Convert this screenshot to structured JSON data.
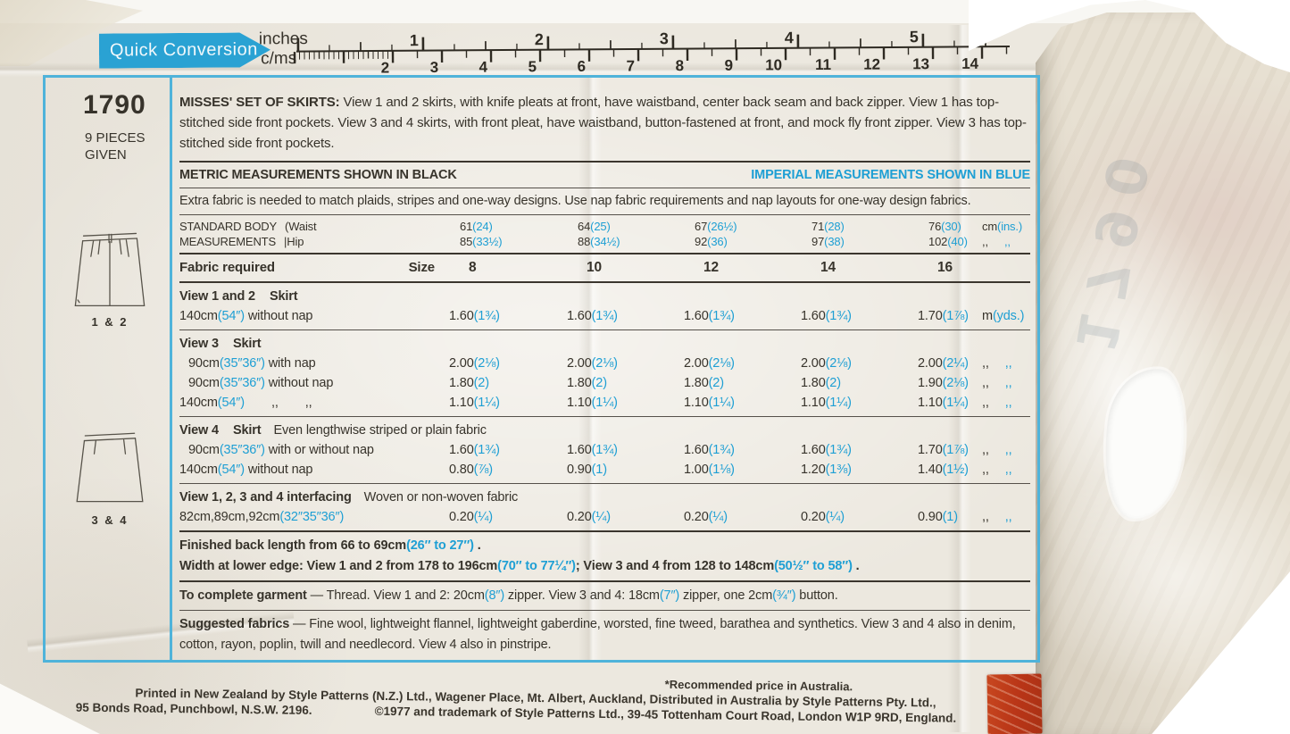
{
  "colors": {
    "blue_text": "#1e9fd4",
    "ink": "#37332b",
    "border_blue": "#4fb3da",
    "banner_blue": "#2aa2d3",
    "stamp_red": "#b93517"
  },
  "ruler": {
    "banner": "Quick Conversion",
    "top_label": "inches",
    "bottom_label": "c/ms",
    "inch_numbers": [
      1,
      2,
      3,
      4,
      5
    ],
    "cm_numbers": [
      2,
      3,
      4,
      5,
      6,
      7,
      8,
      9,
      10,
      11,
      12,
      13,
      14
    ]
  },
  "header": {
    "number": "1790",
    "pieces_line1": "9 PIECES",
    "pieces_line2": "GIVEN"
  },
  "sketches": {
    "one_two": "1 & 2",
    "three_four": "3 & 4"
  },
  "description": [
    [
      "MISSES' SET OF SKIRTS:",
      "kb"
    ],
    [
      " View 1 and 2 skirts, with knife pleats at front, have waistband, center back seam and back zipper. View 1 has top-stitched side front pockets. View 3 and 4 skirts, with front pleat, have waistband, button-fastened at front, and mock fly front zipper. View 3 has top-stitched side front pockets.",
      "k"
    ]
  ],
  "notes": {
    "metric": "METRIC MEASUREMENTS SHOWN IN BLACK",
    "imperial": "IMPERIAL MEASUREMENTS SHOWN IN BLUE",
    "extra_fabric": "Extra fabric is needed to match plaids, stripes and one-way designs. Use nap fabric requirements and nap layouts for one-way design fabrics."
  },
  "body_measurements": {
    "label_line1": [
      [
        "STANDARD BODY",
        "k"
      ],
      [
        "(Waist",
        "kg"
      ]
    ],
    "label_line2": [
      [
        "MEASUREMENTS",
        "k"
      ],
      [
        "|Hip",
        "kg"
      ]
    ],
    "waist": [
      [
        "61",
        "24"
      ],
      [
        "64",
        "25"
      ],
      [
        "67",
        "26½"
      ],
      [
        "71",
        "28"
      ],
      [
        "76",
        "30"
      ]
    ],
    "hip": [
      [
        "85",
        "33½"
      ],
      [
        "88",
        "34½"
      ],
      [
        "92",
        "36"
      ],
      [
        "97",
        "38"
      ],
      [
        "102",
        "40"
      ]
    ],
    "unit_line1": [
      [
        "cm",
        "k"
      ],
      [
        "(ins.)",
        "b"
      ]
    ],
    "unit_line2": [
      [
        ",,",
        "k"
      ],
      [
        ",,",
        "bg"
      ]
    ]
  },
  "size_row": {
    "label": "Fabric required",
    "size": "Size",
    "sizes": [
      "8",
      "10",
      "12",
      "14",
      "16"
    ]
  },
  "sections": [
    {
      "title": "View 1 and 2",
      "title2": "Skirt",
      "subtitle": "",
      "rule": "thin",
      "rows": [
        {
          "label": [
            [
              "140cm",
              "k"
            ],
            [
              "(54″)",
              "b"
            ],
            [
              " without nap",
              "k"
            ]
          ],
          "values": [
            [
              "1.60",
              "1¾"
            ],
            [
              "1.60",
              "1¾"
            ],
            [
              "1.60",
              "1¾"
            ],
            [
              "1.60",
              "1¾"
            ],
            [
              "1.70",
              "1⅞"
            ]
          ],
          "unit": [
            [
              "m",
              "k"
            ],
            [
              "(yds.)",
              "b"
            ]
          ]
        }
      ]
    },
    {
      "title": "View 3",
      "title2": "Skirt",
      "subtitle": "",
      "rule": "thin",
      "rows": [
        {
          "indent": true,
          "label": [
            [
              "90cm",
              "k"
            ],
            [
              "(35″36″)",
              "b"
            ],
            [
              " with nap",
              "k"
            ]
          ],
          "values": [
            [
              "2.00",
              "2⅛"
            ],
            [
              "2.00",
              "2⅛"
            ],
            [
              "2.00",
              "2⅛"
            ],
            [
              "2.00",
              "2⅛"
            ],
            [
              "2.00",
              "2¼"
            ]
          ],
          "unit": [
            [
              ",,",
              "k"
            ],
            [
              ",,",
              "bg"
            ]
          ]
        },
        {
          "indent": true,
          "label": [
            [
              "90cm",
              "k"
            ],
            [
              "(35″36″)",
              "b"
            ],
            [
              " without nap",
              "k"
            ]
          ],
          "values": [
            [
              "1.80",
              "2"
            ],
            [
              "1.80",
              "2"
            ],
            [
              "1.80",
              "2"
            ],
            [
              "1.80",
              "2"
            ],
            [
              "1.90",
              "2⅛"
            ]
          ],
          "unit": [
            [
              ",,",
              "k"
            ],
            [
              ",,",
              "bg"
            ]
          ]
        },
        {
          "label": [
            [
              "140cm",
              "k"
            ],
            [
              "(54″)",
              "b"
            ],
            [
              ",,",
              "kG"
            ],
            [
              ",,",
              "kG"
            ]
          ],
          "values": [
            [
              "1.10",
              "1¼"
            ],
            [
              "1.10",
              "1¼"
            ],
            [
              "1.10",
              "1¼"
            ],
            [
              "1.10",
              "1¼"
            ],
            [
              "1.10",
              "1¼"
            ]
          ],
          "unit": [
            [
              ",,",
              "k"
            ],
            [
              ",,",
              "bg"
            ]
          ]
        }
      ]
    },
    {
      "title": "View 4",
      "title2": "Skirt",
      "subtitle": "Even lengthwise striped or plain fabric",
      "rule": "thin",
      "rows": [
        {
          "indent": true,
          "label": [
            [
              "90cm",
              "k"
            ],
            [
              "(35″36″)",
              "b"
            ],
            [
              " with or without nap",
              "k"
            ]
          ],
          "values": [
            [
              "1.60",
              "1¾"
            ],
            [
              "1.60",
              "1¾"
            ],
            [
              "1.60",
              "1¾"
            ],
            [
              "1.60",
              "1¾"
            ],
            [
              "1.70",
              "1⅞"
            ]
          ],
          "unit": [
            [
              ",,",
              "k"
            ],
            [
              ",,",
              "bg"
            ]
          ]
        },
        {
          "label": [
            [
              "140cm",
              "k"
            ],
            [
              "(54″)",
              "b"
            ],
            [
              " without nap",
              "k"
            ]
          ],
          "values": [
            [
              "0.80",
              "⅞"
            ],
            [
              "0.90",
              "1"
            ],
            [
              "1.00",
              "1⅛"
            ],
            [
              "1.20",
              "1⅜"
            ],
            [
              "1.40",
              "1½"
            ]
          ],
          "unit": [
            [
              ",,",
              "k"
            ],
            [
              ",,",
              "bg"
            ]
          ]
        }
      ]
    },
    {
      "title": "View 1, 2, 3 and 4 interfacing",
      "title2": "",
      "subtitle": "Woven or non-woven fabric",
      "rule": "thick",
      "rows": [
        {
          "label": [
            [
              "82cm,89cm,92cm",
              "k"
            ],
            [
              "(32″35″36″)",
              "b"
            ]
          ],
          "values": [
            [
              "0.20",
              "¼"
            ],
            [
              "0.20",
              "¼"
            ],
            [
              "0.20",
              "¼"
            ],
            [
              "0.20",
              "¼"
            ],
            [
              "0.90",
              "1"
            ]
          ],
          "unit": [
            [
              ",,",
              "k"
            ],
            [
              ",,",
              "bg"
            ]
          ]
        }
      ]
    }
  ],
  "finished": [
    [
      [
        "Finished back length from 66 to 69cm",
        "kb"
      ],
      [
        "(26″ to 27″)",
        "bb"
      ],
      [
        " .",
        "kb"
      ]
    ],
    [
      [
        "Width at lower edge: View 1 and 2 from 178 to 196cm",
        "kb"
      ],
      [
        "(70″ to 77¼″)",
        "bb"
      ],
      [
        "; View 3 and 4 from 128 to 148cm",
        "kb"
      ],
      [
        "(50½″ to 58″)",
        "bb"
      ],
      [
        " .",
        "kb"
      ]
    ]
  ],
  "complete": [
    [
      "To complete garment",
      "kb"
    ],
    [
      " — Thread. View 1 and 2: 20cm",
      "k"
    ],
    [
      "(8″)",
      "b"
    ],
    [
      " zipper. View 3 and 4: 18cm",
      "k"
    ],
    [
      "(7″)",
      "b"
    ],
    [
      " zipper, one 2cm",
      "k"
    ],
    [
      "(¾″)",
      "b"
    ],
    [
      " button.",
      "k"
    ]
  ],
  "suggested": [
    [
      "Suggested fabrics",
      "kb"
    ],
    [
      " — Fine wool, lightweight flannel, lightweight gaberdine, worsted, fine tweed, barathea and synthetics. View 3 and 4 also in denim, cotton, rayon, poplin, twill and needlecord. View 4 also in pinstripe.",
      "k"
    ]
  ],
  "footer": {
    "note": "*Recommended price in Australia.",
    "line1": "Printed in New Zealand by Style Patterns (N.Z.) Ltd., Wagener Place, Mt. Albert, Auckland, Distributed in Australia by Style Patterns Pty. Ltd.,",
    "line2_left": "95 Bonds Road, Punchbowl, N.S.W. 2196.",
    "line2_right": "©1977 and trademark of Style Patterns Ltd., 39-45 Tottenham Court Road, London W1P 9RD, England."
  },
  "flap": {
    "ghost_text": "1790"
  }
}
